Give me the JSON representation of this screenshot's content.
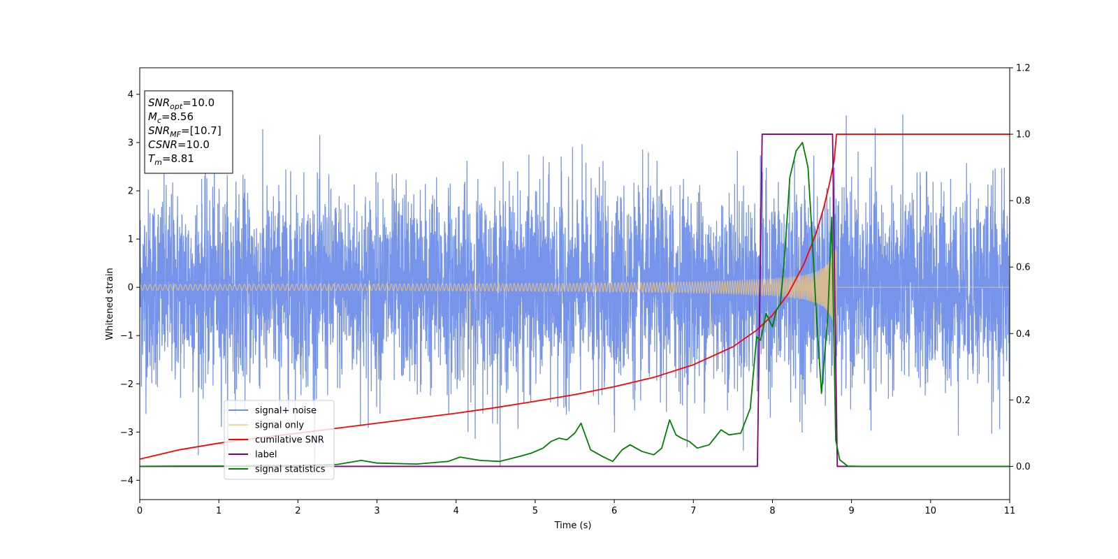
{
  "chart_data": {
    "type": "line",
    "title": "",
    "xlabel": "Time (s)",
    "ylabel": "Whitened strain",
    "xlim": [
      0,
      11
    ],
    "ylim_left": [
      -4.4,
      4.55
    ],
    "ylim_right": [
      -0.1,
      1.2
    ],
    "x_ticks": [
      0,
      1,
      2,
      3,
      4,
      5,
      6,
      7,
      8,
      9,
      10,
      11
    ],
    "y_ticks_left": [
      -4,
      -3,
      -2,
      -1,
      0,
      1,
      2,
      3,
      4
    ],
    "y_ticks_right": [
      0.0,
      0.2,
      0.4,
      0.6,
      0.8,
      1.0,
      1.2
    ],
    "grid": false,
    "legend_position": "lower-left",
    "colors": {
      "signal_noise": "#6f8ee8",
      "signal_only": "#f5c77a",
      "cumulative_snr": "#ff0000",
      "label": "#800080",
      "signal_statistics": "#008000"
    },
    "annotation": {
      "lines": [
        {
          "base": "SNR",
          "sub": "opt",
          "value": "=10.0"
        },
        {
          "base": "M",
          "sub": "c",
          "value": "=8.56"
        },
        {
          "base": "SNR",
          "sub": "MF",
          "value": "=[10.7]"
        },
        {
          "base": "CSNR",
          "sub": "",
          "value": "=10.0"
        },
        {
          "base": "T",
          "sub": "m",
          "value": "=8.81"
        }
      ]
    },
    "series": [
      {
        "name": "signal+ noise",
        "axis": "left",
        "style": "noise",
        "x_range": [
          0,
          11
        ],
        "amplitude_std": 1.0,
        "peak_max": 4.17,
        "peak_min": -3.7
      },
      {
        "name": "signal only",
        "axis": "left",
        "style": "chirp",
        "x_range": [
          0,
          8.81
        ],
        "merger_time": 8.81,
        "start_amplitude": 0.03,
        "end_amplitude": 1.1
      },
      {
        "name": "cumilative SNR",
        "axis": "right",
        "x": [
          0,
          0.5,
          1,
          1.5,
          2,
          2.5,
          3,
          3.5,
          4,
          4.5,
          5,
          5.5,
          6,
          6.5,
          7,
          7.5,
          7.8,
          8.0,
          8.2,
          8.4,
          8.55,
          8.65,
          8.72,
          8.78,
          8.81,
          9,
          10,
          11
        ],
        "y": [
          0.022,
          0.05,
          0.07,
          0.086,
          0.1,
          0.115,
          0.13,
          0.145,
          0.16,
          0.177,
          0.196,
          0.216,
          0.24,
          0.268,
          0.306,
          0.36,
          0.41,
          0.455,
          0.52,
          0.61,
          0.7,
          0.78,
          0.85,
          0.92,
          1.0,
          1.0,
          1.0,
          1.0
        ]
      },
      {
        "name": "label",
        "axis": "right",
        "x": [
          0,
          7.81,
          7.87,
          8.76,
          8.82,
          11
        ],
        "y": [
          0,
          0,
          1.0,
          1.0,
          0,
          0
        ]
      },
      {
        "name": "signal statistics",
        "axis": "right",
        "x": [
          0,
          0.5,
          1,
          1.5,
          2,
          2.5,
          2.8,
          3,
          3.5,
          3.9,
          4.05,
          4.3,
          4.55,
          4.8,
          4.95,
          5.1,
          5.2,
          5.3,
          5.4,
          5.5,
          5.58,
          5.7,
          5.85,
          5.98,
          6.1,
          6.2,
          6.35,
          6.5,
          6.6,
          6.7,
          6.78,
          6.85,
          6.95,
          7.05,
          7.2,
          7.35,
          7.45,
          7.6,
          7.72,
          7.8,
          7.85,
          7.92,
          8.0,
          8.05,
          8.1,
          8.15,
          8.22,
          8.3,
          8.38,
          8.45,
          8.5,
          8.55,
          8.62,
          8.7,
          8.75,
          8.8,
          8.85,
          8.95,
          9.1,
          10,
          11
        ],
        "y": [
          0,
          0.001,
          0.001,
          0.002,
          0.003,
          0.006,
          0.018,
          0.01,
          0.007,
          0.015,
          0.028,
          0.018,
          0.015,
          0.03,
          0.04,
          0.055,
          0.075,
          0.085,
          0.08,
          0.1,
          0.13,
          0.05,
          0.03,
          0.015,
          0.05,
          0.065,
          0.045,
          0.035,
          0.055,
          0.14,
          0.095,
          0.085,
          0.075,
          0.055,
          0.065,
          0.11,
          0.095,
          0.1,
          0.175,
          0.39,
          0.38,
          0.46,
          0.42,
          0.47,
          0.49,
          0.62,
          0.87,
          0.95,
          0.975,
          0.9,
          0.7,
          0.48,
          0.22,
          0.45,
          0.75,
          0.08,
          0.02,
          0.001,
          0,
          0,
          0
        ]
      }
    ]
  }
}
